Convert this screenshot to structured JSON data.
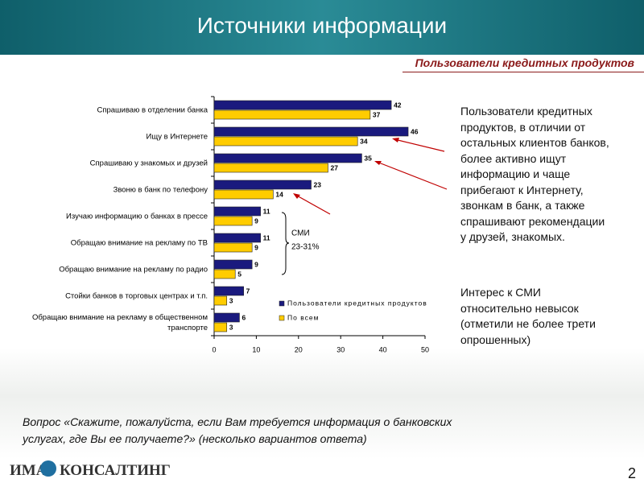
{
  "slide": {
    "title": "Источники информации",
    "subtitle": "Пользователи кредитных продуктов",
    "paragraphs": [
      "Пользователи кредитных продуктов, в отличии от остальных клиентов банков, более активно ищут информацию и чаще прибегают к Интернету, звонкам в банк, а также спрашивают рекомендации у друзей, знакомых.",
      "Интерес к СМИ относительно невысок (отметили не более трети опрошенных)"
    ],
    "question": "Вопрос «Скажите, пожалуйста, если Вам требуется информация о банковских услугах, где Вы ее получаете?» (несколько вариантов ответа)",
    "logo": [
      "ИМА",
      "КОНСАЛТИНГ"
    ],
    "page_number": "2"
  },
  "chart_data": {
    "type": "bar",
    "orientation": "horizontal",
    "categories": [
      "Спрашиваю в отделении банка",
      "Ищу в Интернете",
      "Спрашиваю у знакомых и друзей",
      "Звоню в банк по телефону",
      "Изучаю информацию о банках  в прессе",
      "Обращаю внимание на рекламу по ТВ",
      "Обращаю внимание на рекламу по радио",
      "Стойки банков в торговых центрах и т.п.",
      "Обращаю внимание на рекламу в общественном транспорте"
    ],
    "series": [
      {
        "name": "Пользователи кредитных продуктов",
        "color": "#1a1a7e",
        "values": [
          42,
          46,
          35,
          23,
          11,
          11,
          9,
          7,
          6
        ]
      },
      {
        "name": "По всем",
        "color": "#ffcc00",
        "values": [
          37,
          34,
          27,
          14,
          9,
          9,
          5,
          3,
          3
        ]
      }
    ],
    "xlim": [
      0,
      50
    ],
    "xticks": [
      0,
      10,
      20,
      30,
      40,
      50
    ],
    "annotation": [
      "СМИ",
      "23-31%"
    ]
  }
}
